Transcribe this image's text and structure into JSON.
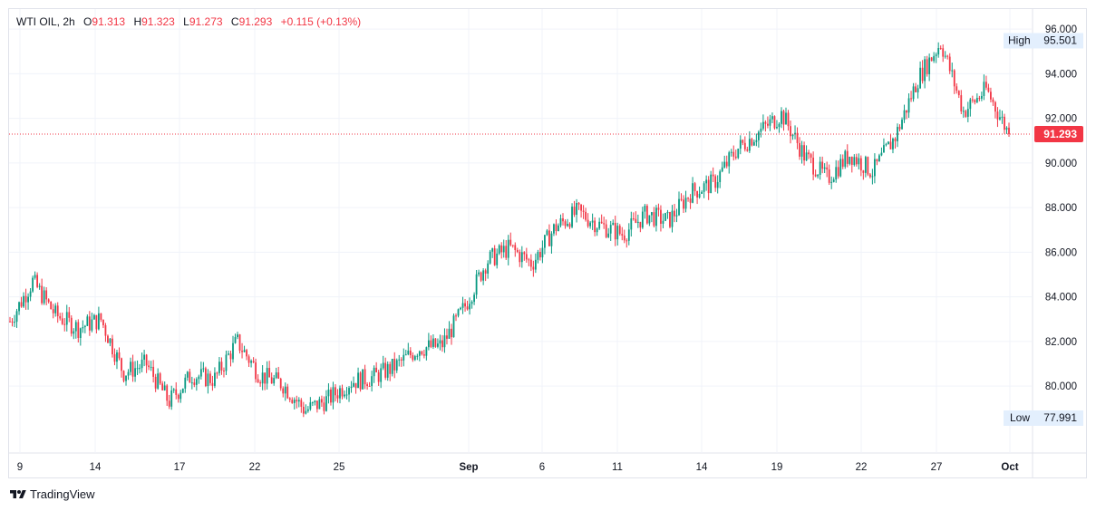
{
  "legend": {
    "symbol": "WTI OIL",
    "interval": "2h",
    "open_label": "O",
    "open": "91.313",
    "high_label": "H",
    "high": "91.323",
    "low_label": "L",
    "low": "91.273",
    "close_label": "C",
    "close": "91.293",
    "change": "+0.115 (+0.13%)"
  },
  "markers": {
    "high_label": "High",
    "high_value": "95.501",
    "low_label": "Low",
    "low_value": "77.991",
    "last_price": "91.293"
  },
  "branding": {
    "name": "TradingView"
  },
  "colors": {
    "up": "#089981",
    "down": "#f23645",
    "price_line": "#f23645",
    "grid": "#f0f3fa",
    "marker_bg": "#e3effd"
  },
  "chart_data": {
    "type": "candlestick",
    "y_ticks": [
      "96.000",
      "94.000",
      "92.000",
      "90.000",
      "88.000",
      "86.000",
      "84.000",
      "82.000",
      "80.000"
    ],
    "x_ticks": [
      "9",
      "14",
      "17",
      "22",
      "25",
      "Sep",
      "6",
      "11",
      "14",
      "19",
      "22",
      "27",
      "Oct"
    ],
    "ylim": [
      77.0,
      96.9
    ],
    "grid": true,
    "last_price": 91.293,
    "high": 95.501,
    "low": 77.991,
    "close_path": [
      [
        "9",
        82.9
      ],
      [
        "10",
        84.7
      ],
      [
        "11",
        83.2
      ],
      [
        "12",
        82.6
      ],
      [
        "14",
        83.0
      ],
      [
        "15",
        80.6
      ],
      [
        "16",
        81.0
      ],
      [
        "17",
        79.3
      ],
      [
        "18",
        80.5
      ],
      [
        "19",
        80.3
      ],
      [
        "20",
        82.0
      ],
      [
        "21",
        80.5
      ],
      [
        "22",
        80.1
      ],
      [
        "23",
        78.9
      ],
      [
        "24",
        79.4
      ],
      [
        "25",
        80.2
      ],
      [
        "26",
        80.4
      ],
      [
        "27",
        80.9
      ],
      [
        "28",
        81.7
      ],
      [
        "29",
        81.8
      ],
      [
        "30",
        83.5
      ],
      [
        "31",
        85.6
      ],
      [
        "Sep 1",
        86.2
      ],
      [
        "Sep 4",
        85.5
      ],
      [
        "Sep 5",
        87.1
      ],
      [
        "Sep 6",
        87.8
      ],
      [
        "Sep 7",
        87.2
      ],
      [
        "Sep 8",
        86.8
      ],
      [
        "Sep 11",
        87.7
      ],
      [
        "Sep 12",
        87.4
      ],
      [
        "Sep 13",
        88.7
      ],
      [
        "Sep 14",
        89.1
      ],
      [
        "Sep 15",
        90.6
      ],
      [
        "Sep 18",
        91.4
      ],
      [
        "Sep 19",
        92.2
      ],
      [
        "Sep 20",
        90.3
      ],
      [
        "Sep 21",
        89.3
      ],
      [
        "Sep 22",
        90.4
      ],
      [
        "Sep 25",
        89.6
      ],
      [
        "Sep 26",
        91.2
      ],
      [
        "Sep 27",
        93.8
      ],
      [
        "Sep 28",
        95.4
      ],
      [
        "Sep 29",
        92.3
      ],
      [
        "Sep 30",
        93.3
      ],
      [
        "Oct 1",
        91.293
      ]
    ]
  }
}
